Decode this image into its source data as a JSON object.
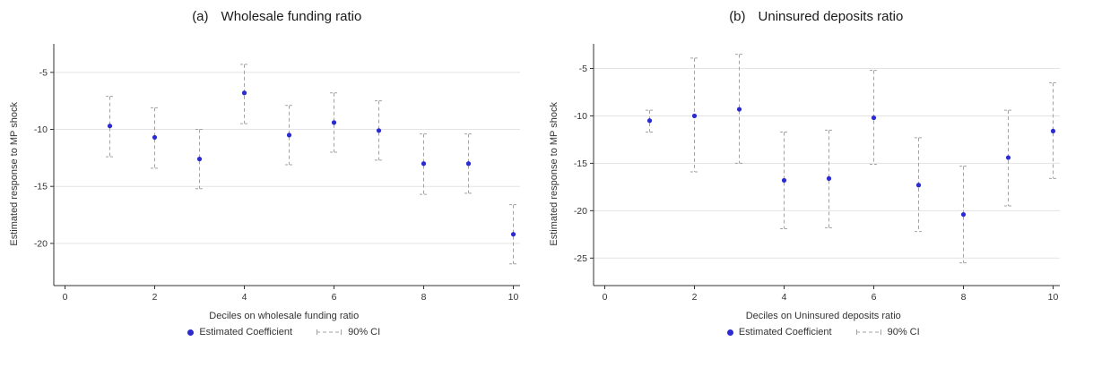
{
  "figure": {
    "colors": {
      "point": "#2b2bcf",
      "ci": "#a3a3a3",
      "grid": "#e3e3e3",
      "axis": "#333333",
      "tick_text": "#333333"
    }
  },
  "chart_data": [
    {
      "type": "scatter",
      "panel_label": "(a)",
      "title": "Wholesale funding ratio",
      "xlabel": "Deciles on wholesale funding ratio",
      "ylabel": "Estimated response to MP shock",
      "legend": [
        "Estimated Coefficient",
        "90% CI"
      ],
      "x": [
        1,
        2,
        3,
        4,
        5,
        6,
        7,
        8,
        9,
        10
      ],
      "coef": [
        -9.7,
        -10.7,
        -12.6,
        -6.8,
        -10.5,
        -9.4,
        -10.1,
        -13.0,
        -13.0,
        -19.2
      ],
      "ci_high": [
        -7.1,
        -8.1,
        -10.0,
        -4.3,
        -7.9,
        -6.8,
        -7.5,
        -10.4,
        -10.4,
        -16.6
      ],
      "ci_low": [
        -12.4,
        -13.4,
        -15.2,
        -9.5,
        -13.1,
        -12.0,
        -12.7,
        -15.7,
        -15.6,
        -21.8
      ],
      "xticks": [
        0,
        2,
        4,
        6,
        8,
        10
      ],
      "yticks": [
        -5,
        -10,
        -15,
        -20
      ],
      "xlim": [
        -0.25,
        10.15
      ],
      "ylim": [
        -23.7,
        -2.5
      ],
      "grid": true,
      "legend_position": "bottom"
    },
    {
      "type": "scatter",
      "panel_label": "(b)",
      "title": "Uninsured deposits ratio",
      "xlabel": "Deciles on Uninsured deposits ratio",
      "ylabel": "Estimated response to MP shock",
      "legend": [
        "Estimated Coefficient",
        "90% CI"
      ],
      "x": [
        1,
        2,
        3,
        4,
        5,
        6,
        7,
        8,
        9,
        10
      ],
      "coef": [
        -10.5,
        -10.0,
        -9.3,
        -16.8,
        -16.6,
        -10.2,
        -17.3,
        -20.4,
        -14.4,
        -11.6
      ],
      "ci_high": [
        -9.4,
        -3.9,
        -3.5,
        -11.7,
        -11.5,
        -5.2,
        -12.3,
        -15.3,
        -9.4,
        -6.5
      ],
      "ci_low": [
        -11.7,
        -15.9,
        -15.0,
        -21.9,
        -21.8,
        -15.1,
        -22.2,
        -25.5,
        -19.5,
        -16.6
      ],
      "xticks": [
        0,
        2,
        4,
        6,
        8,
        10
      ],
      "yticks": [
        -5,
        -10,
        -15,
        -20,
        -25
      ],
      "xlim": [
        -0.25,
        10.15
      ],
      "ylim": [
        -27.9,
        -2.4
      ],
      "grid": true,
      "legend_position": "bottom"
    }
  ]
}
